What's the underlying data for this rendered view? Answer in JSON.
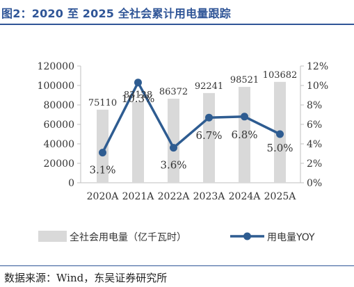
{
  "figure": {
    "title": "图2：2020 至 2025 全社会累计用电量跟踪",
    "source": "数据来源：Wind，东吴证券研究所"
  },
  "colors": {
    "title": "#2f5597",
    "bar": "#d9d9d9",
    "line": "#2e5c91",
    "axis_text": "#333333"
  },
  "chart_data": {
    "type": "bar",
    "categories": [
      "2020A",
      "2021A",
      "2022A",
      "2023A",
      "2024A",
      "2025A"
    ],
    "series": [
      {
        "name": "全社会用电量（亿千瓦时）",
        "type": "bar",
        "axis": "left",
        "values": [
          75110,
          83128,
          86372,
          92241,
          98521,
          103682
        ],
        "labels": [
          "75110",
          "83128",
          "86372",
          "92241",
          "98521",
          "103682"
        ]
      },
      {
        "name": "用电量YOY",
        "type": "line",
        "axis": "right",
        "values": [
          3.1,
          10.3,
          3.6,
          6.7,
          6.8,
          5.0
        ],
        "labels": [
          "3.1%",
          "10.3%",
          "3.6%",
          "6.7%",
          "6.8%",
          "5.0%"
        ]
      }
    ],
    "left_axis": {
      "ylim": [
        0,
        120000
      ],
      "ticks": [
        0,
        20000,
        40000,
        60000,
        80000,
        100000,
        120000
      ],
      "tick_labels": [
        "0",
        "20000",
        "40000",
        "60000",
        "80000",
        "100000",
        "120000"
      ]
    },
    "right_axis": {
      "ylim": [
        0,
        12
      ],
      "ticks": [
        0,
        2,
        4,
        6,
        8,
        10,
        12
      ],
      "tick_labels": [
        "0%",
        "2%",
        "4%",
        "6%",
        "8%",
        "10%",
        "12%"
      ]
    },
    "grid": false,
    "legend_position": "bottom"
  }
}
